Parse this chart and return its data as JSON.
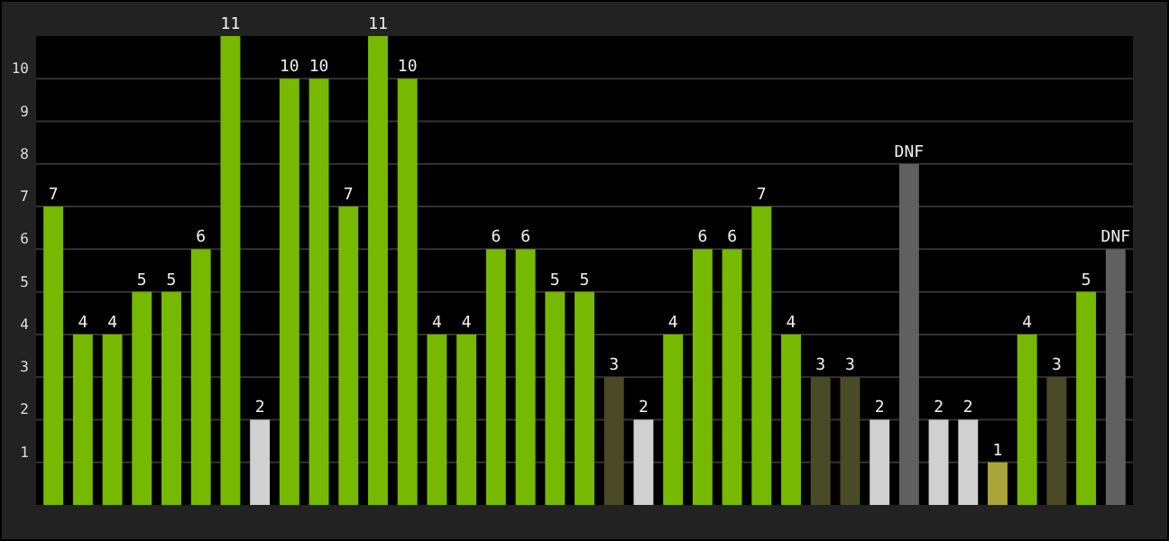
{
  "chart_data": {
    "type": "bar",
    "categories": [
      null,
      null,
      null,
      null,
      null,
      null,
      null,
      null,
      null,
      null,
      null,
      null,
      null,
      null,
      null,
      null,
      null,
      null,
      null,
      null,
      null,
      null,
      null,
      null,
      null,
      null,
      null,
      null,
      null,
      null,
      null,
      null,
      null,
      null,
      null,
      null,
      null
    ],
    "values": [
      7,
      4,
      4,
      5,
      5,
      6,
      11,
      2,
      10,
      10,
      7,
      11,
      10,
      4,
      4,
      6,
      6,
      5,
      5,
      3,
      2,
      4,
      6,
      6,
      7,
      4,
      3,
      3,
      2,
      8,
      2,
      2,
      1,
      4,
      3,
      5,
      6
    ],
    "colors": [
      "#76b900",
      "#76b900",
      "#76b900",
      "#76b900",
      "#76b900",
      "#76b900",
      "#76b900",
      "#d0d0d0",
      "#76b900",
      "#76b900",
      "#76b900",
      "#76b900",
      "#76b900",
      "#76b900",
      "#76b900",
      "#76b900",
      "#76b900",
      "#76b900",
      "#76b900",
      "#4b4a26",
      "#d0d0d0",
      "#76b900",
      "#76b900",
      "#76b900",
      "#76b900",
      "#76b900",
      "#4b4a26",
      "#4b4a26",
      "#d0d0d0",
      "#606060",
      "#d0d0d0",
      "#d0d0d0",
      "#aaa53a",
      "#76b900",
      "#4b4a26",
      "#76b900",
      "#606060"
    ],
    "value_labels": [
      "7",
      "4",
      "4",
      "5",
      "5",
      "6",
      "11",
      "2",
      "10",
      "10",
      "7",
      "11",
      "10",
      "4",
      "4",
      "6",
      "6",
      "5",
      "5",
      "3",
      "2",
      "4",
      "6",
      "6",
      "7",
      "4",
      "3",
      "3",
      "2",
      "DNF",
      "2",
      "2",
      "1",
      "4",
      "3",
      "5",
      "DNF"
    ],
    "ylim": [
      0,
      11
    ],
    "yticks": [
      1,
      2,
      3,
      4,
      5,
      6,
      7,
      8,
      9,
      10
    ],
    "grid": "y"
  }
}
